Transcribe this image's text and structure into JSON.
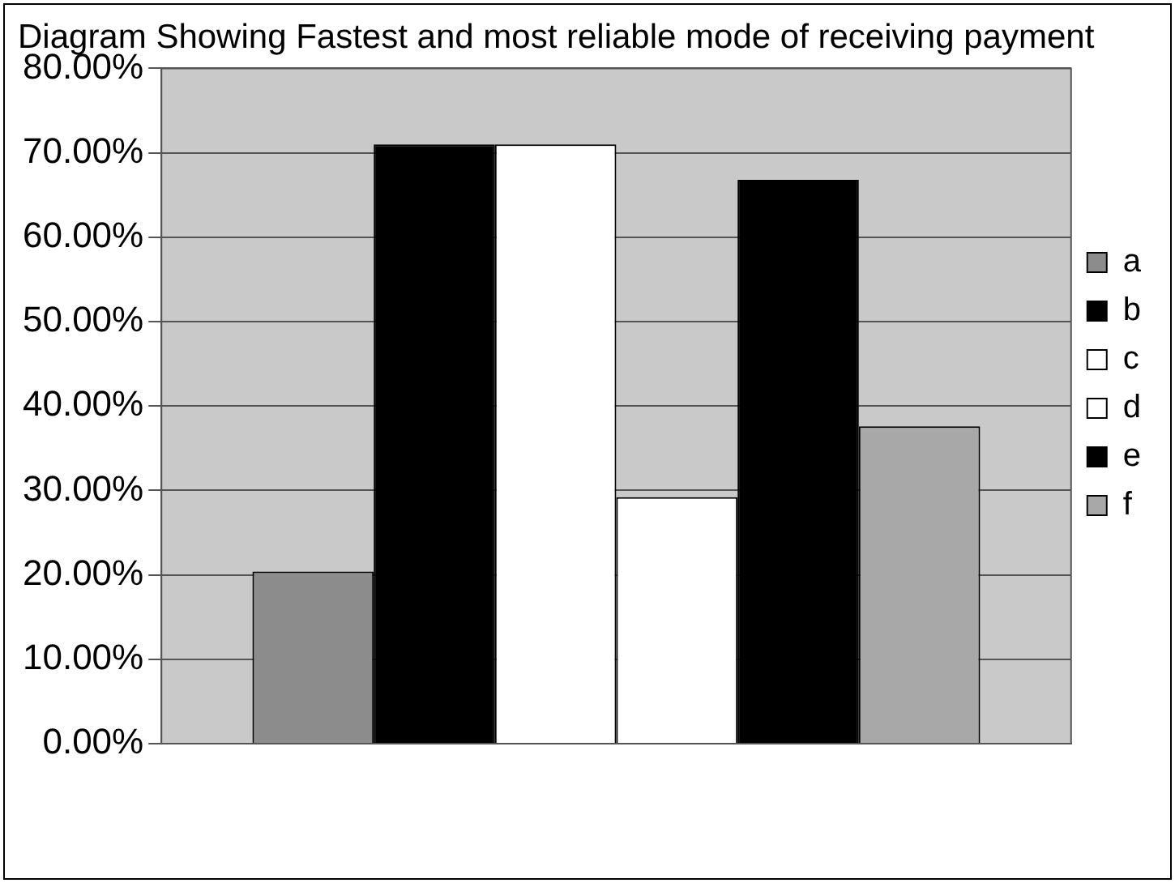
{
  "chart_data": {
    "type": "bar",
    "title": "Diagram Showing Fastest and most reliable mode of receiving payment",
    "categories": [
      null
    ],
    "series": [
      {
        "name": "a",
        "color": "#8c8c8c",
        "values": [
          20.4
        ]
      },
      {
        "name": "b",
        "color": "#000000",
        "values": [
          71
        ]
      },
      {
        "name": "c",
        "color": "#ffffff",
        "values": [
          71
        ]
      },
      {
        "name": "d",
        "color": "#ffffff",
        "values": [
          29.2
        ]
      },
      {
        "name": "e",
        "color": "#000000",
        "values": [
          66.8
        ]
      },
      {
        "name": "f",
        "color": "#a8a8a8",
        "values": [
          37.6
        ]
      }
    ],
    "ylim": [
      0,
      80
    ],
    "yticks": [
      {
        "value": 0,
        "label": "0.00%"
      },
      {
        "value": 10,
        "label": "10.00%"
      },
      {
        "value": 20,
        "label": "20.00%"
      },
      {
        "value": 30,
        "label": "30.00%"
      },
      {
        "value": 40,
        "label": "40.00%"
      },
      {
        "value": 50,
        "label": "50.00%"
      },
      {
        "value": 60,
        "label": "60.00%"
      },
      {
        "value": 70,
        "label": "70.00%"
      },
      {
        "value": 80,
        "label": "80.00%"
      }
    ],
    "grid": "y",
    "legend": "right",
    "tick_labels": "y"
  }
}
